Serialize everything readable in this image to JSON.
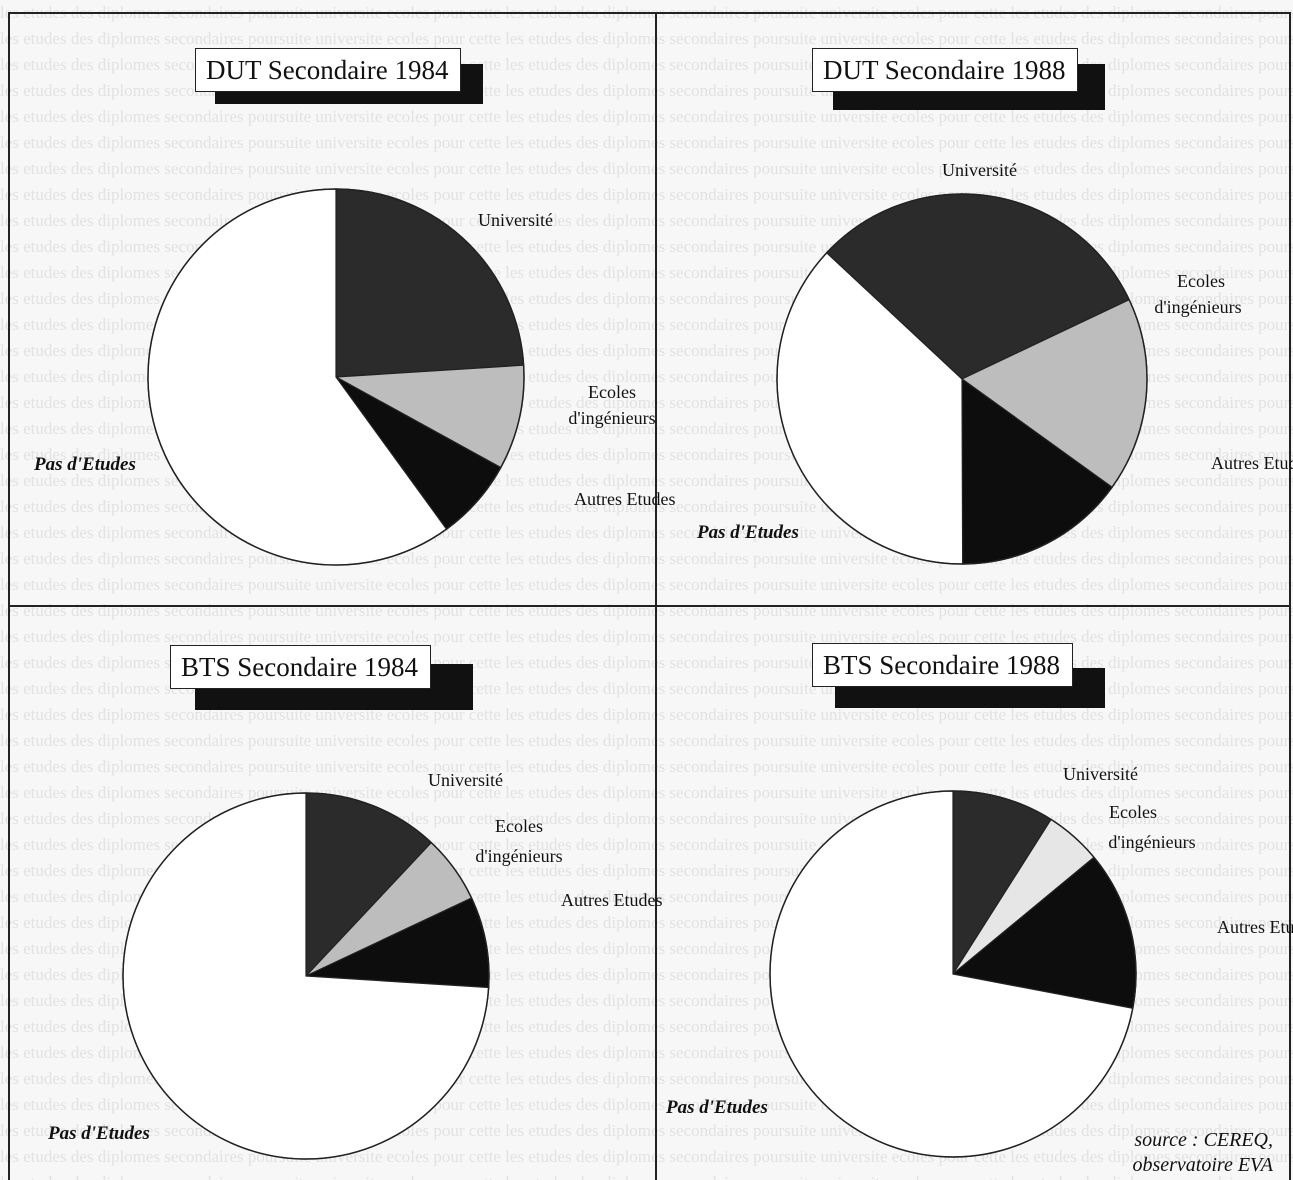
{
  "source": {
    "line1": "source : CEREQ,",
    "line2": "observatoire EVA"
  },
  "chart_data": [
    {
      "type": "pie",
      "title": "DUT Secondaire 1984",
      "slices": [
        {
          "label": "Université",
          "value": 24,
          "color": "#2b2b2b"
        },
        {
          "label": "Ecoles d'ingénieurs",
          "value": 9,
          "color": "#bdbdbd"
        },
        {
          "label": "Autres Etudes",
          "value": 7,
          "color": "#0d0d0d"
        },
        {
          "label": "Pas d'Etudes",
          "value": 60,
          "color": "#ffffff"
        }
      ]
    },
    {
      "type": "pie",
      "title": "DUT Secondaire 1988",
      "slices": [
        {
          "label": "Université",
          "value": 31,
          "color": "#2b2b2b"
        },
        {
          "label": "Ecoles d'ingénieurs",
          "value": 17,
          "color": "#bdbdbd"
        },
        {
          "label": "Autres Etudes",
          "value": 15,
          "color": "#0d0d0d"
        },
        {
          "label": "Pas d'Etudes",
          "value": 37,
          "color": "#ffffff"
        }
      ]
    },
    {
      "type": "pie",
      "title": "BTS Secondaire 1984",
      "slices": [
        {
          "label": "Université",
          "value": 12,
          "color": "#2b2b2b"
        },
        {
          "label": "Ecoles d'ingénieurs",
          "value": 6,
          "color": "#bdbdbd"
        },
        {
          "label": "Autres Etudes",
          "value": 8,
          "color": "#0d0d0d"
        },
        {
          "label": "Pas d'Etudes",
          "value": 74,
          "color": "#ffffff"
        }
      ]
    },
    {
      "type": "pie",
      "title": "BTS Secondaire 1988",
      "slices": [
        {
          "label": "Université",
          "value": 9,
          "color": "#2b2b2b"
        },
        {
          "label": "Ecoles d'ingénieurs",
          "value": 5,
          "color": "#e6e6e6"
        },
        {
          "label": "Autres Etudes",
          "value": 14,
          "color": "#0d0d0d"
        },
        {
          "label": "Pas d'Etudes",
          "value": 72,
          "color": "#ffffff"
        }
      ]
    }
  ]
}
